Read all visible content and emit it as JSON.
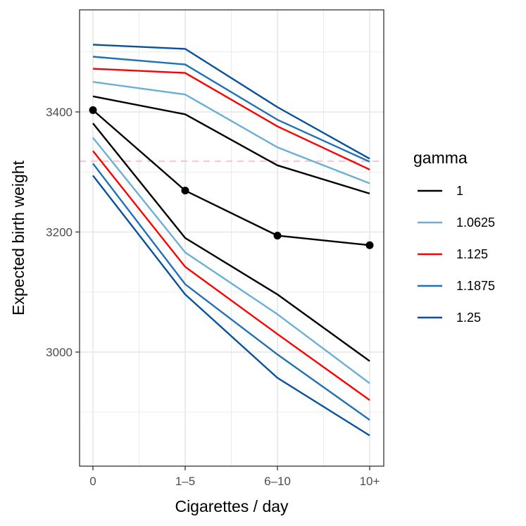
{
  "chart_data": {
    "type": "line",
    "title": "",
    "xlabel": "Cigarettes / day",
    "ylabel": "Expected birth weight",
    "categories": [
      "0",
      "1–5",
      "6–10",
      "10+"
    ],
    "ylim": [
      2810,
      3570
    ],
    "yticks": [
      3000,
      3200,
      3400
    ],
    "grid": true,
    "legend": {
      "title": "gamma",
      "position": "right"
    },
    "reference_line": {
      "y": 3318,
      "style": "dashed",
      "color": "#ffc0cb"
    },
    "point_estimate": {
      "values": [
        3403,
        3269,
        3194,
        3178
      ],
      "color": "#000000"
    },
    "series": [
      {
        "name": "1",
        "color": "#000000",
        "upper": [
          3426,
          3396,
          3311,
          3264
        ],
        "lower": [
          3381,
          3190,
          3096,
          2985
        ]
      },
      {
        "name": "1.0625",
        "color": "#6baed6",
        "upper": [
          3450,
          3429,
          3341,
          3281
        ],
        "lower": [
          3357,
          3166,
          3063,
          2948
        ]
      },
      {
        "name": "1.125",
        "color": "#ff0000",
        "upper": [
          3472,
          3465,
          3376,
          3304
        ],
        "lower": [
          3335,
          3142,
          3030,
          2920
        ]
      },
      {
        "name": "1.1875",
        "color": "#2171b5",
        "upper": [
          3492,
          3479,
          3387,
          3317
        ],
        "lower": [
          3314,
          3113,
          2996,
          2887
        ]
      },
      {
        "name": "1.25",
        "color": "#08519c",
        "upper": [
          3512,
          3505,
          3408,
          3322
        ],
        "lower": [
          3294,
          3096,
          2957,
          2861
        ]
      }
    ]
  }
}
